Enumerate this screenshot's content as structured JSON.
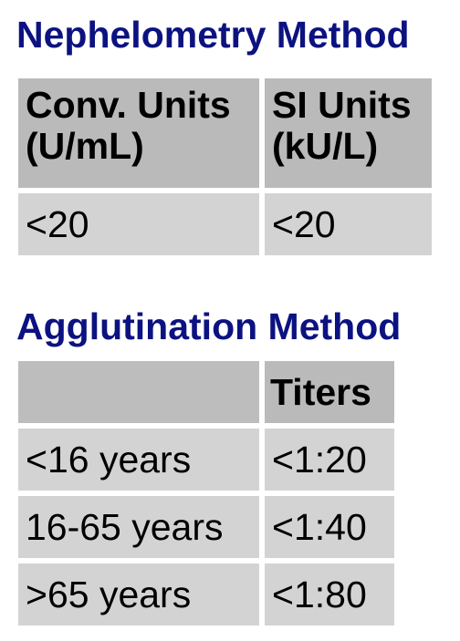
{
  "colors": {
    "title": "#0c1280",
    "header_cell": "#bababa",
    "body_cell": "#d3d3d3"
  },
  "nephelometry": {
    "title": "Nephelometry Method",
    "headers": [
      {
        "line1": "Conv. Units",
        "line2": "(U/mL)"
      },
      {
        "line1": "SI Units",
        "line2": "(kU/L)"
      }
    ],
    "rows": [
      [
        "<20",
        "<20"
      ]
    ]
  },
  "agglutination": {
    "title": "Agglutination Method",
    "headers": [
      "",
      "Titers"
    ],
    "rows": [
      [
        "<16 years",
        "<1:20"
      ],
      [
        "16-65 years",
        "<1:40"
      ],
      [
        ">65 years",
        "<1:80"
      ]
    ]
  }
}
